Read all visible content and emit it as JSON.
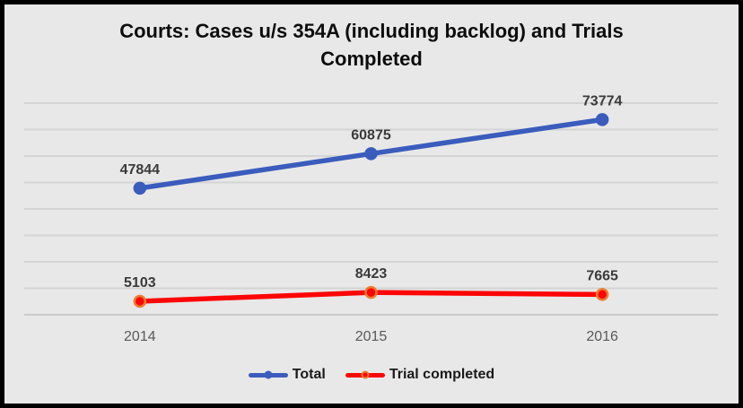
{
  "title_lines": {
    "line1": "Courts: Cases u/s 354A (including backlog) and Trials",
    "line2": "Completed"
  },
  "chart_data": {
    "type": "line",
    "title": "Courts: Cases u/s 354A (including backlog) and Trials Completed",
    "categories": [
      "2014",
      "2015",
      "2016"
    ],
    "series": [
      {
        "name": "Total",
        "color": "#3a5cbc",
        "marker_fill": "#3a5cbc",
        "marker_stroke": "#3a5cbc",
        "values": [
          47844,
          60875,
          73774
        ]
      },
      {
        "name": "Trial completed",
        "color": "#fe0505",
        "marker_fill": "#fe0505",
        "marker_stroke": "#ed7d31",
        "values": [
          5103,
          8423,
          7665
        ]
      }
    ],
    "ylim": [
      0,
      80000
    ],
    "grid_step": 10000,
    "grid": true,
    "y_axis_labels_visible": false,
    "data_labels": true,
    "legend_position": "bottom",
    "xlabel": "",
    "ylabel": ""
  },
  "colors": {
    "background": "#e8e8e8",
    "frame_border": "#000000",
    "gridline": "#d4d4d4",
    "axis_line": "#bfbfbf",
    "data_label": "#3a3a3a",
    "tick_label": "#595959",
    "title": "#0d0d0d",
    "legend_text": "#1a1a1a"
  }
}
